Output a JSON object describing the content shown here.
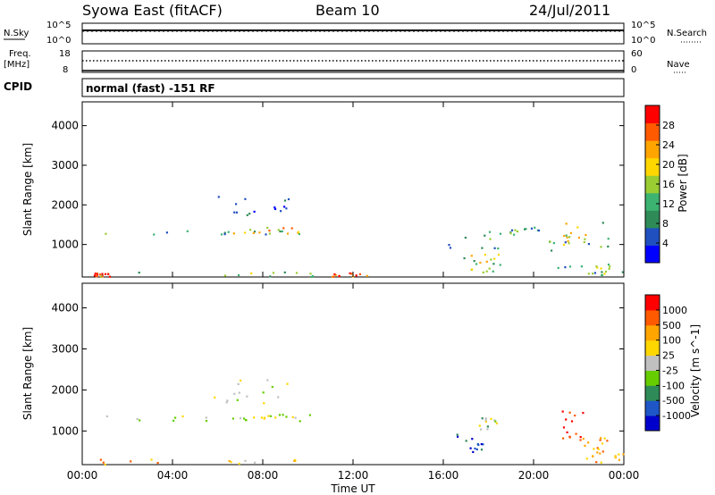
{
  "header": {
    "title": "Syowa East (fitACF)",
    "beam": "Beam 10",
    "date": "24/Jul/2011"
  },
  "status_panel": {
    "nsky_label": "N.Sky",
    "nsky_top": "10^5",
    "nsky_bottom": "10^0",
    "nsearch_label": "N.Search",
    "nsearch_top": "10^5",
    "nsearch_bottom": "10^0",
    "freq_label_1": "Freq.",
    "freq_label_2": "[MHz]",
    "freq_top": "18",
    "freq_bottom": "8",
    "nave_label": "Nave",
    "nave_top": "60",
    "nave_bottom": "0",
    "cpid_label": "CPID",
    "cpid_value": "normal (fast) -151 RF"
  },
  "colors": {
    "power": [
      "#0000ff",
      "#2050c0",
      "#2e8b57",
      "#3cb371",
      "#9acd32",
      "#ffd700",
      "#ffa500",
      "#ff5a00",
      "#ff0000"
    ],
    "velocity": [
      "#0000cd",
      "#1e56c8",
      "#2e8b57",
      "#66cd00",
      "#c0c0c0",
      "#ffd700",
      "#ffa500",
      "#ff5a00",
      "#ff0000"
    ]
  },
  "chart_data": [
    {
      "type": "heatmap",
      "name": "power",
      "ylabel": "Slant Range [km]",
      "yticks": [
        "1000",
        "2000",
        "3000",
        "4000"
      ],
      "ylim": [
        180,
        4600
      ],
      "xlim": [
        0,
        24
      ],
      "xticks": [
        "00:00",
        "04:00",
        "08:00",
        "12:00",
        "16:00",
        "20:00",
        "00:00"
      ],
      "colorbar_label": "Power [dB]",
      "colorbar_ticks": [
        "4",
        "8",
        "12",
        "16",
        "20",
        "24",
        "28"
      ],
      "clim": [
        0,
        32
      ],
      "regions": [
        {
          "x": [
            0.5,
            10.2
          ],
          "y": [
            200,
            330
          ],
          "level": 0.45
        },
        {
          "x": [
            1.0,
            10.2
          ],
          "y": [
            1240,
            1430
          ],
          "level": 0.35
        },
        {
          "x": [
            5.8,
            9.3
          ],
          "y": [
            1700,
            2300
          ],
          "level": 0.15
        },
        {
          "x": [
            6.5,
            10.2
          ],
          "y": [
            1280,
            1450
          ],
          "level": 0.65
        },
        {
          "x": [
            0.5,
            1.3
          ],
          "y": [
            200,
            300
          ],
          "level": 0.95
        },
        {
          "x": [
            11.0,
            12.6
          ],
          "y": [
            200,
            300
          ],
          "level": 0.85
        },
        {
          "x": [
            16.0,
            18.6
          ],
          "y": [
            500,
            1350
          ],
          "level": 0.3
        },
        {
          "x": [
            17.2,
            18.5
          ],
          "y": [
            300,
            800
          ],
          "level": 0.55
        },
        {
          "x": [
            18.8,
            20.2
          ],
          "y": [
            1250,
            1450
          ],
          "level": 0.3
        },
        {
          "x": [
            20.5,
            23.4
          ],
          "y": [
            250,
            1650
          ],
          "level": 0.35
        },
        {
          "x": [
            21.3,
            22.3
          ],
          "y": [
            1000,
            1550
          ],
          "level": 0.6
        },
        {
          "x": [
            22.3,
            24.0
          ],
          "y": [
            250,
            500
          ],
          "level": 0.45
        }
      ]
    },
    {
      "type": "heatmap",
      "name": "velocity",
      "ylabel": "Slant Range [km]",
      "yticks": [
        "1000",
        "2000",
        "3000",
        "4000"
      ],
      "ylim": [
        180,
        4600
      ],
      "xlim": [
        0,
        24
      ],
      "xticks": [
        "00:00",
        "04:00",
        "08:00",
        "12:00",
        "16:00",
        "20:00",
        "00:00"
      ],
      "xlabel": "Time UT",
      "colorbar_label": "Velocity [m s^-1]",
      "colorbar_ticks": [
        "1000",
        "500",
        "100",
        "25",
        "-25",
        "-100",
        "-500",
        "-1000"
      ],
      "regions": [
        {
          "x": [
            0.5,
            10.2
          ],
          "y": [
            200,
            330
          ],
          "level": 0.7
        },
        {
          "x": [
            1.0,
            10.2
          ],
          "y": [
            1240,
            1430
          ],
          "level": 0.5
        },
        {
          "x": [
            5.8,
            9.3
          ],
          "y": [
            1700,
            2300
          ],
          "level": 0.5
        },
        {
          "x": [
            6.5,
            10.2
          ],
          "y": [
            1280,
            1450
          ],
          "level": 0.5
        },
        {
          "x": [
            16.5,
            18.4
          ],
          "y": [
            500,
            1000
          ],
          "level": 0.1
        },
        {
          "x": [
            17.5,
            18.4
          ],
          "y": [
            1000,
            1350
          ],
          "level": 0.45
        },
        {
          "x": [
            21.2,
            22.4
          ],
          "y": [
            800,
            1550
          ],
          "level": 0.95
        },
        {
          "x": [
            22.0,
            23.3
          ],
          "y": [
            300,
            900
          ],
          "level": 0.75
        },
        {
          "x": [
            22.5,
            24.0
          ],
          "y": [
            250,
            600
          ],
          "level": 0.7
        }
      ]
    }
  ]
}
